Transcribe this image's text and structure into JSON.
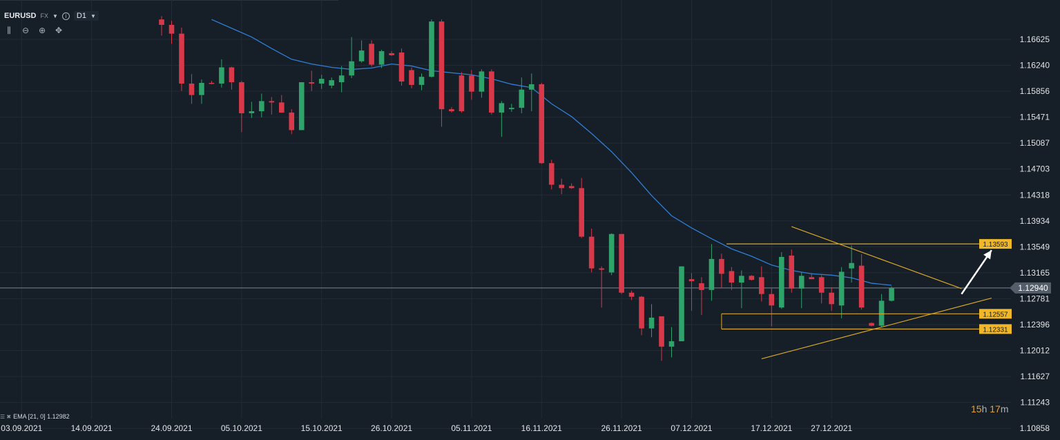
{
  "toolbar": {
    "symbol": "EURUSD",
    "market": "FX",
    "timeframe": "D1",
    "icons": [
      "info-icon",
      "bar-type-icon",
      "zoom-out-icon",
      "zoom-in-icon",
      "crosshair-icon"
    ]
  },
  "indicator": {
    "label": "EMA [21, 0] 1.12982"
  },
  "countdown": {
    "hours": "15",
    "h_unit": "h",
    "minutes": "17",
    "m_unit": "m"
  },
  "colors": {
    "background": "#161e27",
    "grid": "#222c37",
    "bull": "#2ea36a",
    "bear": "#d8394a",
    "ema": "#2f7fd6",
    "trendline": "#d9a927",
    "price_line": "#7a8693",
    "label_bg": "#f0b829",
    "current_label_bg": "#545e6a",
    "axis_text": "#e1e4e8"
  },
  "chart_data": {
    "type": "candlestick",
    "symbol": "EURUSD",
    "timeframe": "D1",
    "y_ticks": [
      "1.16625",
      "1.16240",
      "1.15856",
      "1.15471",
      "1.15087",
      "1.14703",
      "1.14318",
      "1.13934",
      "1.13549",
      "1.13165",
      "1.12781",
      "1.12396",
      "1.12012",
      "1.11627",
      "1.11243",
      "1.10858"
    ],
    "x_ticks": [
      {
        "label": "03.09.2021",
        "index": 0
      },
      {
        "label": "14.09.2021",
        "index": 7
      },
      {
        "label": "24.09.2021",
        "index": 15
      },
      {
        "label": "05.10.2021",
        "index": 22
      },
      {
        "label": "15.10.2021",
        "index": 30
      },
      {
        "label": "26.10.2021",
        "index": 37
      },
      {
        "label": "05.11.2021",
        "index": 45
      },
      {
        "label": "16.11.2021",
        "index": 52
      },
      {
        "label": "26.11.2021",
        "index": 60
      },
      {
        "label": "07.12.2021",
        "index": 67
      },
      {
        "label": "17.12.2021",
        "index": 75
      },
      {
        "label": "27.12.2021",
        "index": 81
      }
    ],
    "current_price": "1.12940",
    "ylim": [
      1.1084,
      1.1693
    ],
    "candles": [
      {
        "i": 14,
        "o": 1.1692,
        "h": 1.1697,
        "l": 1.1668,
        "c": 1.1684
      },
      {
        "i": 15,
        "o": 1.1684,
        "h": 1.169,
        "l": 1.1656,
        "c": 1.1671
      },
      {
        "i": 16,
        "o": 1.1671,
        "h": 1.168,
        "l": 1.1586,
        "c": 1.1597
      },
      {
        "i": 17,
        "o": 1.1597,
        "h": 1.1611,
        "l": 1.1567,
        "c": 1.158
      },
      {
        "i": 18,
        "o": 1.158,
        "h": 1.1603,
        "l": 1.1567,
        "c": 1.1598
      },
      {
        "i": 19,
        "o": 1.1598,
        "h": 1.1601,
        "l": 1.1596,
        "c": 1.1597
      },
      {
        "i": 20,
        "o": 1.1597,
        "h": 1.1633,
        "l": 1.1591,
        "c": 1.1621
      },
      {
        "i": 21,
        "o": 1.1621,
        "h": 1.1622,
        "l": 1.1588,
        "c": 1.1599
      },
      {
        "i": 22,
        "o": 1.1599,
        "h": 1.1601,
        "l": 1.1525,
        "c": 1.1553
      },
      {
        "i": 23,
        "o": 1.1553,
        "h": 1.157,
        "l": 1.1546,
        "c": 1.1556
      },
      {
        "i": 24,
        "o": 1.1556,
        "h": 1.1582,
        "l": 1.1547,
        "c": 1.1571
      },
      {
        "i": 25,
        "o": 1.1571,
        "h": 1.1577,
        "l": 1.1551,
        "c": 1.1569
      },
      {
        "i": 26,
        "o": 1.1569,
        "h": 1.158,
        "l": 1.1554,
        "c": 1.1554
      },
      {
        "i": 27,
        "o": 1.1554,
        "h": 1.1559,
        "l": 1.1522,
        "c": 1.1528
      },
      {
        "i": 28,
        "o": 1.1528,
        "h": 1.1599,
        "l": 1.1528,
        "c": 1.1599
      },
      {
        "i": 29,
        "o": 1.1599,
        "h": 1.1616,
        "l": 1.1586,
        "c": 1.1597
      },
      {
        "i": 30,
        "o": 1.1597,
        "h": 1.161,
        "l": 1.1589,
        "c": 1.1604
      },
      {
        "i": 31,
        "o": 1.1594,
        "h": 1.1606,
        "l": 1.159,
        "c": 1.1602
      },
      {
        "i": 32,
        "o": 1.1599,
        "h": 1.1623,
        "l": 1.1584,
        "c": 1.1609
      },
      {
        "i": 33,
        "o": 1.1609,
        "h": 1.1666,
        "l": 1.1605,
        "c": 1.163
      },
      {
        "i": 34,
        "o": 1.163,
        "h": 1.1661,
        "l": 1.1628,
        "c": 1.1646
      },
      {
        "i": 35,
        "o": 1.1656,
        "h": 1.1661,
        "l": 1.1622,
        "c": 1.1625
      },
      {
        "i": 36,
        "o": 1.1625,
        "h": 1.1647,
        "l": 1.162,
        "c": 1.1645
      },
      {
        "i": 37,
        "o": 1.1642,
        "h": 1.1645,
        "l": 1.1638,
        "c": 1.1639
      },
      {
        "i": 38,
        "o": 1.1643,
        "h": 1.1649,
        "l": 1.1594,
        "c": 1.16
      },
      {
        "i": 39,
        "o": 1.1617,
        "h": 1.1621,
        "l": 1.159,
        "c": 1.1595
      },
      {
        "i": 40,
        "o": 1.1595,
        "h": 1.1612,
        "l": 1.1587,
        "c": 1.1607
      },
      {
        "i": 41,
        "o": 1.1607,
        "h": 1.1692,
        "l": 1.1606,
        "c": 1.1689
      },
      {
        "i": 42,
        "o": 1.1689,
        "h": 1.1692,
        "l": 1.1533,
        "c": 1.1559
      },
      {
        "i": 43,
        "o": 1.1559,
        "h": 1.1562,
        "l": 1.1554,
        "c": 1.1556
      },
      {
        "i": 44,
        "o": 1.1609,
        "h": 1.1614,
        "l": 1.1554,
        "c": 1.1556
      },
      {
        "i": 45,
        "o": 1.1609,
        "h": 1.1617,
        "l": 1.1573,
        "c": 1.1585
      },
      {
        "i": 46,
        "o": 1.1585,
        "h": 1.1618,
        "l": 1.1576,
        "c": 1.1615
      },
      {
        "i": 47,
        "o": 1.1615,
        "h": 1.1618,
        "l": 1.1551,
        "c": 1.1554
      },
      {
        "i": 48,
        "o": 1.1554,
        "h": 1.1571,
        "l": 1.1518,
        "c": 1.1568
      },
      {
        "i": 49,
        "o": 1.1559,
        "h": 1.1567,
        "l": 1.1555,
        "c": 1.1561
      },
      {
        "i": 50,
        "o": 1.1561,
        "h": 1.1606,
        "l": 1.1553,
        "c": 1.1588
      },
      {
        "i": 51,
        "o": 1.1588,
        "h": 1.1612,
        "l": 1.1556,
        "c": 1.1596
      },
      {
        "i": 52,
        "o": 1.1596,
        "h": 1.1598,
        "l": 1.1478,
        "c": 1.1479
      },
      {
        "i": 53,
        "o": 1.1479,
        "h": 1.1484,
        "l": 1.144,
        "c": 1.1447
      },
      {
        "i": 54,
        "o": 1.1447,
        "h": 1.1456,
        "l": 1.1433,
        "c": 1.1442
      },
      {
        "i": 55,
        "o": 1.1445,
        "h": 1.1449,
        "l": 1.1441,
        "c": 1.1442
      },
      {
        "i": 56,
        "o": 1.1442,
        "h": 1.1457,
        "l": 1.1368,
        "c": 1.137
      },
      {
        "i": 57,
        "o": 1.137,
        "h": 1.1382,
        "l": 1.1317,
        "c": 1.1323
      },
      {
        "i": 58,
        "o": 1.1323,
        "h": 1.1326,
        "l": 1.1265,
        "c": 1.1321
      },
      {
        "i": 59,
        "o": 1.1317,
        "h": 1.1375,
        "l": 1.1313,
        "c": 1.1374
      },
      {
        "i": 60,
        "o": 1.1374,
        "h": 1.1374,
        "l": 1.1285,
        "c": 1.1287
      },
      {
        "i": 61,
        "o": 1.1287,
        "h": 1.129,
        "l": 1.1276,
        "c": 1.1281
      },
      {
        "i": 62,
        "o": 1.1281,
        "h": 1.1282,
        "l": 1.1224,
        "c": 1.1234
      },
      {
        "i": 63,
        "o": 1.1234,
        "h": 1.127,
        "l": 1.1221,
        "c": 1.125
      },
      {
        "i": 64,
        "o": 1.1252,
        "h": 1.1252,
        "l": 1.1186,
        "c": 1.1207
      },
      {
        "i": 65,
        "o": 1.1207,
        "h": 1.1236,
        "l": 1.1191,
        "c": 1.1215
      },
      {
        "i": 66,
        "o": 1.1215,
        "h": 1.1326,
        "l": 1.1215,
        "c": 1.1326
      },
      {
        "i": 67,
        "o": 1.1307,
        "h": 1.1316,
        "l": 1.126,
        "c": 1.1304
      },
      {
        "i": 68,
        "o": 1.1301,
        "h": 1.131,
        "l": 1.1254,
        "c": 1.1291
      },
      {
        "i": 69,
        "o": 1.1291,
        "h": 1.1359,
        "l": 1.1275,
        "c": 1.1337
      },
      {
        "i": 70,
        "o": 1.1337,
        "h": 1.1345,
        "l": 1.1294,
        "c": 1.1315
      },
      {
        "i": 71,
        "o": 1.1319,
        "h": 1.1325,
        "l": 1.1291,
        "c": 1.1302
      },
      {
        "i": 72,
        "o": 1.1302,
        "h": 1.132,
        "l": 1.1264,
        "c": 1.1312
      },
      {
        "i": 73,
        "o": 1.1312,
        "h": 1.1313,
        "l": 1.1305,
        "c": 1.1306
      },
      {
        "i": 74,
        "o": 1.131,
        "h": 1.1326,
        "l": 1.1274,
        "c": 1.1285
      },
      {
        "i": 75,
        "o": 1.1285,
        "h": 1.1293,
        "l": 1.1237,
        "c": 1.1268
      },
      {
        "i": 76,
        "o": 1.1265,
        "h": 1.1347,
        "l": 1.1263,
        "c": 1.134
      },
      {
        "i": 77,
        "o": 1.1342,
        "h": 1.1351,
        "l": 1.1287,
        "c": 1.1293
      },
      {
        "i": 78,
        "o": 1.1293,
        "h": 1.1317,
        "l": 1.1264,
        "c": 1.1312
      },
      {
        "i": 79,
        "o": 1.131,
        "h": 1.1316,
        "l": 1.131,
        "c": 1.1307
      },
      {
        "i": 80,
        "o": 1.131,
        "h": 1.1313,
        "l": 1.1271,
        "c": 1.1287
      },
      {
        "i": 81,
        "o": 1.1287,
        "h": 1.1295,
        "l": 1.126,
        "c": 1.127
      },
      {
        "i": 82,
        "o": 1.1268,
        "h": 1.1325,
        "l": 1.1249,
        "c": 1.1318
      },
      {
        "i": 83,
        "o": 1.1323,
        "h": 1.1357,
        "l": 1.1302,
        "c": 1.1331
      },
      {
        "i": 84,
        "o": 1.1327,
        "h": 1.1344,
        "l": 1.1262,
        "c": 1.1265
      },
      {
        "i": 85,
        "o": 1.1242,
        "h": 1.1243,
        "l": 1.1237,
        "c": 1.1238
      },
      {
        "i": 86,
        "o": 1.1238,
        "h": 1.1285,
        "l": 1.1236,
        "c": 1.1275
      },
      {
        "i": 87,
        "o": 1.1275,
        "h": 1.1296,
        "l": 1.1274,
        "c": 1.1294
      }
    ],
    "ema": [
      {
        "i": 19,
        "v": 1.1692
      },
      {
        "i": 21,
        "v": 1.1679
      },
      {
        "i": 23,
        "v": 1.1666
      },
      {
        "i": 25,
        "v": 1.1649
      },
      {
        "i": 27,
        "v": 1.1633
      },
      {
        "i": 29,
        "v": 1.1626
      },
      {
        "i": 31,
        "v": 1.1621
      },
      {
        "i": 33,
        "v": 1.1618
      },
      {
        "i": 35,
        "v": 1.162
      },
      {
        "i": 37,
        "v": 1.1626
      },
      {
        "i": 39,
        "v": 1.1623
      },
      {
        "i": 41,
        "v": 1.1616
      },
      {
        "i": 43,
        "v": 1.1613
      },
      {
        "i": 45,
        "v": 1.161
      },
      {
        "i": 47,
        "v": 1.1604
      },
      {
        "i": 49,
        "v": 1.1596
      },
      {
        "i": 51,
        "v": 1.1591
      },
      {
        "i": 53,
        "v": 1.1567
      },
      {
        "i": 55,
        "v": 1.1548
      },
      {
        "i": 57,
        "v": 1.1523
      },
      {
        "i": 59,
        "v": 1.1496
      },
      {
        "i": 61,
        "v": 1.1465
      },
      {
        "i": 63,
        "v": 1.1431
      },
      {
        "i": 65,
        "v": 1.1401
      },
      {
        "i": 67,
        "v": 1.1383
      },
      {
        "i": 69,
        "v": 1.1367
      },
      {
        "i": 71,
        "v": 1.1352
      },
      {
        "i": 73,
        "v": 1.1341
      },
      {
        "i": 75,
        "v": 1.1328
      },
      {
        "i": 77,
        "v": 1.132
      },
      {
        "i": 79,
        "v": 1.1315
      },
      {
        "i": 81,
        "v": 1.1313
      },
      {
        "i": 83,
        "v": 1.1309
      },
      {
        "i": 85,
        "v": 1.1301
      },
      {
        "i": 87,
        "v": 1.1298
      }
    ],
    "horizontal_levels": [
      {
        "value": 1.13593,
        "label": "1.13593"
      },
      {
        "value": 1.12557,
        "label": "1.12557"
      },
      {
        "value": 1.12331,
        "label": "1.12331"
      }
    ],
    "trendlines": [
      {
        "from": {
          "i": 77,
          "v": 1.1385
        },
        "to": {
          "i": 94,
          "v": 1.1293
        }
      },
      {
        "from": {
          "i": 74,
          "v": 1.1189
        },
        "to": {
          "i": 97,
          "v": 1.1279
        }
      }
    ],
    "arrow": {
      "from": {
        "i": 94,
        "v": 1.1285
      },
      "to": {
        "i": 97,
        "v": 1.135
      }
    }
  }
}
